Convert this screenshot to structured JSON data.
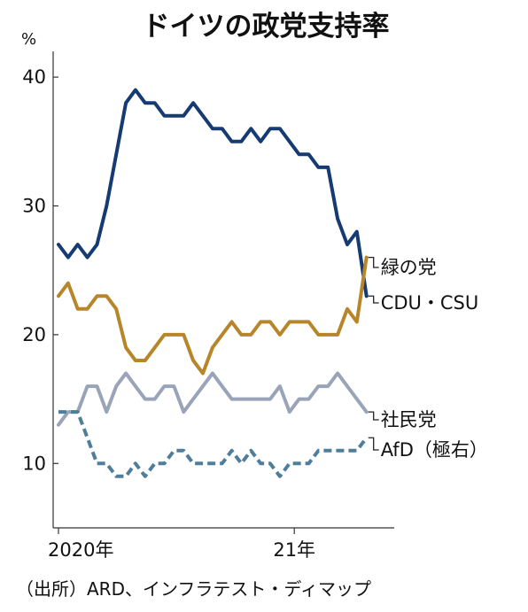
{
  "chart_data": {
    "type": "line",
    "title": "ドイツの政党支持率",
    "ylabel": "%",
    "ylim": [
      5,
      42
    ],
    "yticks": [
      10,
      20,
      30,
      40
    ],
    "x_range": [
      0,
      33.5
    ],
    "xtick_labels": [
      {
        "x": 0,
        "label": "2020年"
      },
      {
        "x": 24.5,
        "label": "21年"
      }
    ],
    "grid": false,
    "source": "（出所）ARD、インフラテスト・ディマップ",
    "series": [
      {
        "name": "CDU・CSU",
        "color": "#163a72",
        "dash": false,
        "x": [
          0,
          1,
          2,
          3,
          4,
          5,
          6,
          7,
          8,
          9,
          10,
          11,
          12,
          13,
          14,
          15,
          16,
          17,
          18,
          19,
          20,
          21,
          22,
          23,
          24,
          25,
          26,
          27,
          28,
          29,
          30,
          31,
          32
        ],
        "values": [
          27,
          26,
          27,
          26,
          27,
          30,
          34,
          38,
          39,
          38,
          38,
          37,
          37,
          37,
          38,
          37,
          36,
          36,
          35,
          35,
          36,
          35,
          36,
          36,
          35,
          34,
          34,
          33,
          33,
          29,
          27,
          28,
          23
        ]
      },
      {
        "name": "緑の党",
        "color": "#b8862a",
        "dash": false,
        "x": [
          0,
          1,
          2,
          3,
          4,
          5,
          6,
          7,
          8,
          9,
          10,
          11,
          12,
          13,
          14,
          15,
          16,
          17,
          18,
          19,
          20,
          21,
          22,
          23,
          24,
          25,
          26,
          27,
          28,
          29,
          30,
          31,
          32
        ],
        "values": [
          23,
          24,
          22,
          22,
          23,
          23,
          22,
          19,
          18,
          18,
          19,
          20,
          20,
          20,
          18,
          17,
          19,
          20,
          21,
          20,
          20,
          21,
          21,
          20,
          21,
          21,
          21,
          20,
          20,
          20,
          22,
          21,
          26
        ]
      },
      {
        "name": "社民党",
        "color": "#9aa4b8",
        "dash": false,
        "x": [
          0,
          1,
          2,
          3,
          4,
          5,
          6,
          7,
          8,
          9,
          10,
          11,
          12,
          13,
          14,
          15,
          16,
          17,
          18,
          19,
          20,
          21,
          22,
          23,
          24,
          25,
          26,
          27,
          28,
          29,
          30,
          31,
          32
        ],
        "values": [
          13,
          14,
          14,
          16,
          16,
          14,
          16,
          17,
          16,
          15,
          15,
          16,
          16,
          14,
          15,
          16,
          17,
          16,
          15,
          15,
          15,
          15,
          15,
          16,
          14,
          15,
          15,
          16,
          16,
          17,
          16,
          15,
          14
        ]
      },
      {
        "name": "AfD（極右）",
        "color": "#4f7e9c",
        "dash": true,
        "x": [
          0,
          1,
          2,
          3,
          4,
          5,
          6,
          7,
          8,
          9,
          10,
          11,
          12,
          13,
          14,
          15,
          16,
          17,
          18,
          19,
          20,
          21,
          22,
          23,
          24,
          25,
          26,
          27,
          28,
          29,
          30,
          31,
          32
        ],
        "values": [
          14,
          14,
          14,
          12,
          10,
          10,
          9,
          9,
          10,
          9,
          10,
          10,
          11,
          11,
          10,
          10,
          10,
          10,
          11,
          10,
          11,
          10,
          10,
          9,
          10,
          10,
          10,
          11,
          11,
          11,
          11,
          11,
          12
        ]
      }
    ]
  }
}
